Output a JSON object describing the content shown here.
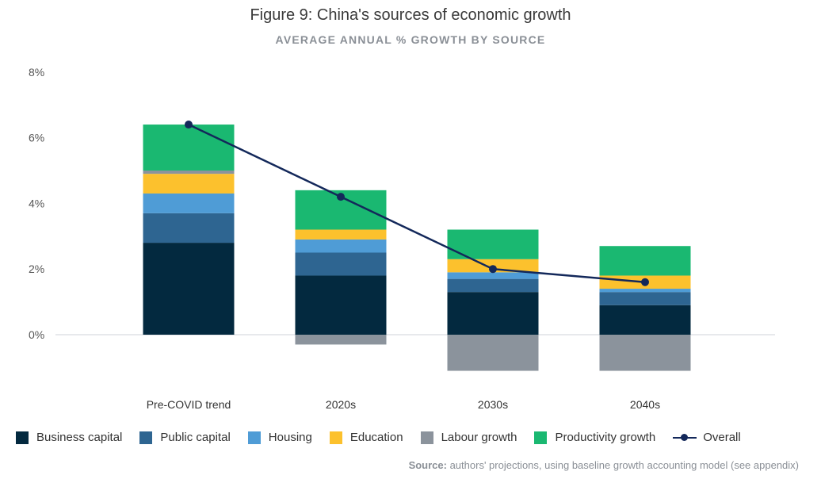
{
  "chart_data": {
    "type": "bar",
    "stacked": true,
    "title": "Figure 9: China's sources of economic growth",
    "subtitle": "AVERAGE ANNUAL % GROWTH BY SOURCE",
    "categories": [
      "Pre-COVID trend",
      "2020s",
      "2030s",
      "2040s"
    ],
    "series": [
      {
        "name": "Business capital",
        "color": "#03293f",
        "values": [
          2.8,
          1.8,
          1.3,
          0.9
        ]
      },
      {
        "name": "Public capital",
        "color": "#2e6591",
        "values": [
          0.9,
          0.7,
          0.4,
          0.4
        ]
      },
      {
        "name": "Housing",
        "color": "#4f9cd6",
        "values": [
          0.6,
          0.4,
          0.2,
          0.1
        ]
      },
      {
        "name": "Education",
        "color": "#fcc12d",
        "values": [
          0.6,
          0.3,
          0.4,
          0.4
        ]
      },
      {
        "name": "Labour growth",
        "color": "#8b939c",
        "values": [
          0.1,
          -0.3,
          -1.1,
          -1.1
        ]
      },
      {
        "name": "Productivity growth",
        "color": "#1ab871",
        "values": [
          1.4,
          1.2,
          0.9,
          0.9
        ]
      }
    ],
    "overall": {
      "name": "Overall",
      "color": "#13285a",
      "values": [
        6.4,
        4.2,
        2.0,
        1.6
      ]
    },
    "yticks": [
      "8%",
      "6%",
      "4%",
      "2%",
      "0%"
    ],
    "ytick_values": [
      8,
      6,
      4,
      2,
      0
    ],
    "ylim": [
      -1.1,
      8
    ]
  },
  "source": {
    "label": "Source:",
    "text": " authors' projections, using baseline growth accounting model (see appendix)"
  }
}
